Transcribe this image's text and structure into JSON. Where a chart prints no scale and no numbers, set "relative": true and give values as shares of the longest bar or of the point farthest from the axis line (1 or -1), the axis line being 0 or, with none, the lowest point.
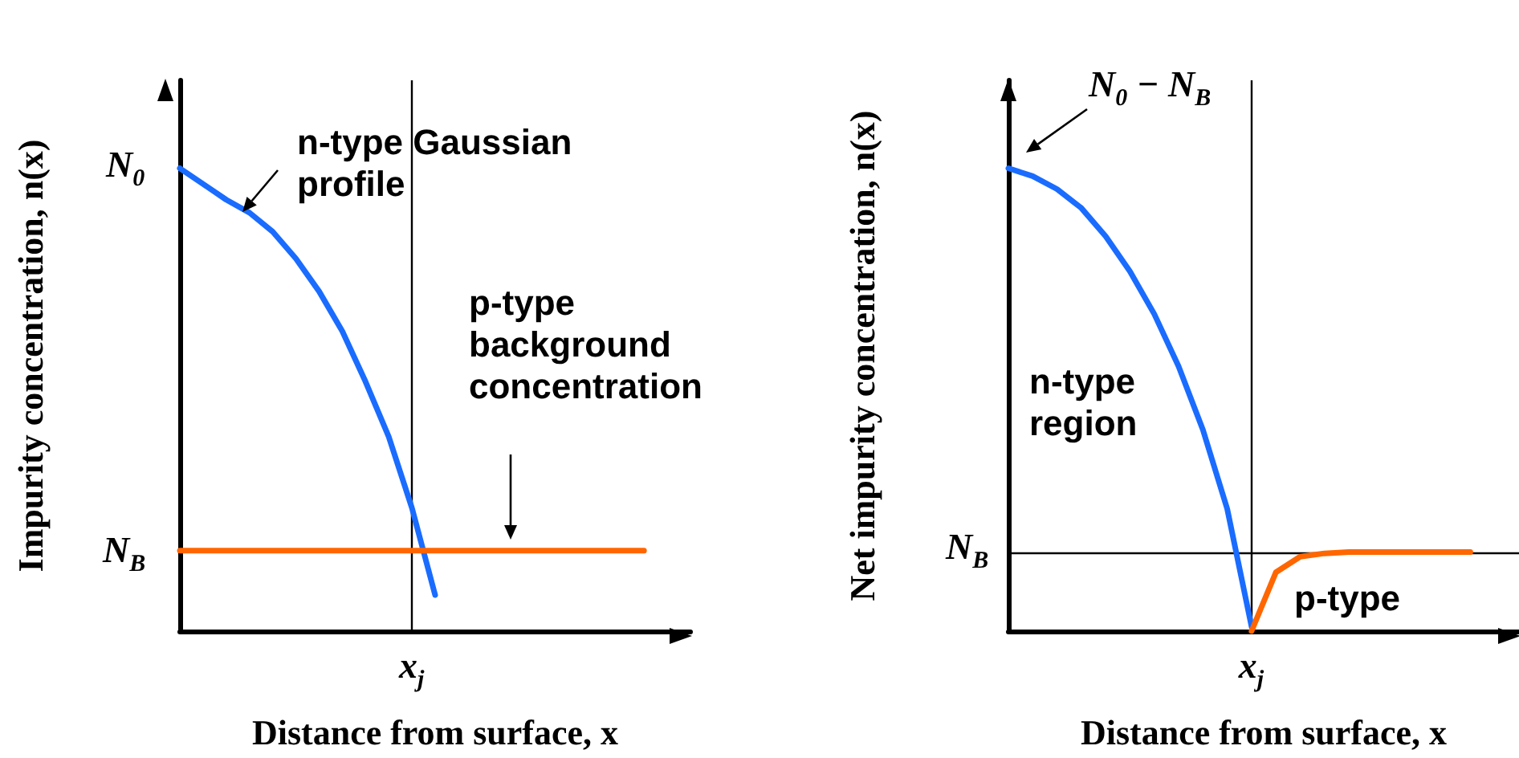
{
  "chart_data": [
    {
      "type": "line",
      "relative": true,
      "xlabel": "Distance from surface, x",
      "ylabel": "Impurity concentration, n(x)",
      "categories": [
        null,
        null,
        null,
        null,
        null,
        null,
        null,
        null,
        null,
        null,
        null,
        null,
        null,
        null,
        null,
        null,
        null,
        null,
        null,
        null,
        null,
        null,
        null
      ],
      "series": [
        {
          "color": "#1a6cff",
          "values": [
            1.0,
            0.966,
            0.932,
            0.904,
            0.863,
            0.805,
            0.734,
            0.648,
            0.539,
            0.42,
            0.266,
            0.078,
            null,
            null,
            null,
            null,
            null,
            null,
            null,
            null,
            null,
            null,
            null
          ]
        },
        {
          "color": "#ff6600",
          "values": [
            0.174,
            0.174,
            0.174,
            0.174,
            0.174,
            0.174,
            0.174,
            0.174,
            0.174,
            0.174,
            0.174,
            0.174,
            0.174,
            0.174,
            0.174,
            0.174,
            0.174,
            0.174,
            0.174,
            0.174,
            0.174,
            null,
            null
          ]
        }
      ],
      "ref_lines": [
        {
          "axis": "x",
          "label": "x$_{j}$",
          "color": "#000000"
        }
      ],
      "annotations": [
        "N$_{0}$",
        "N$_{B}$",
        "n-type Gaussian profile",
        "p-type background concentration"
      ]
    },
    {
      "type": "line",
      "relative": true,
      "xlabel": "Distance from surface, x",
      "ylabel": "Net impurity concentration, n(x)",
      "categories": [
        null,
        null,
        null,
        null,
        null,
        null,
        null,
        null,
        null,
        null,
        null,
        null,
        null,
        null,
        null,
        null,
        null,
        null,
        null,
        null,
        null,
        null
      ],
      "series": [
        {
          "color": "#1a6cff",
          "values": [
            1.0,
            0.983,
            0.955,
            0.914,
            0.853,
            0.777,
            0.685,
            0.572,
            0.435,
            0.264,
            0.01,
            null,
            null,
            null,
            null,
            null,
            null,
            null,
            null,
            null,
            null,
            null
          ]
        },
        {
          "color": "#ff6600",
          "values": [
            null,
            null,
            null,
            null,
            null,
            null,
            null,
            null,
            null,
            null,
            0.0,
            0.127,
            0.161,
            0.168,
            0.171,
            0.171,
            0.171,
            0.171,
            0.171,
            0.171,
            null,
            null
          ]
        }
      ],
      "ref_lines": [
        {
          "axis": "y",
          "value": 0.171,
          "label": "N$_{B}$",
          "color": "#000000"
        },
        {
          "axis": "x",
          "label": "x$_{j}$",
          "color": "#000000"
        }
      ],
      "annotations": [
        "N$_{0}$ − N$_{B}$",
        "n-type region",
        "p-type"
      ]
    }
  ]
}
